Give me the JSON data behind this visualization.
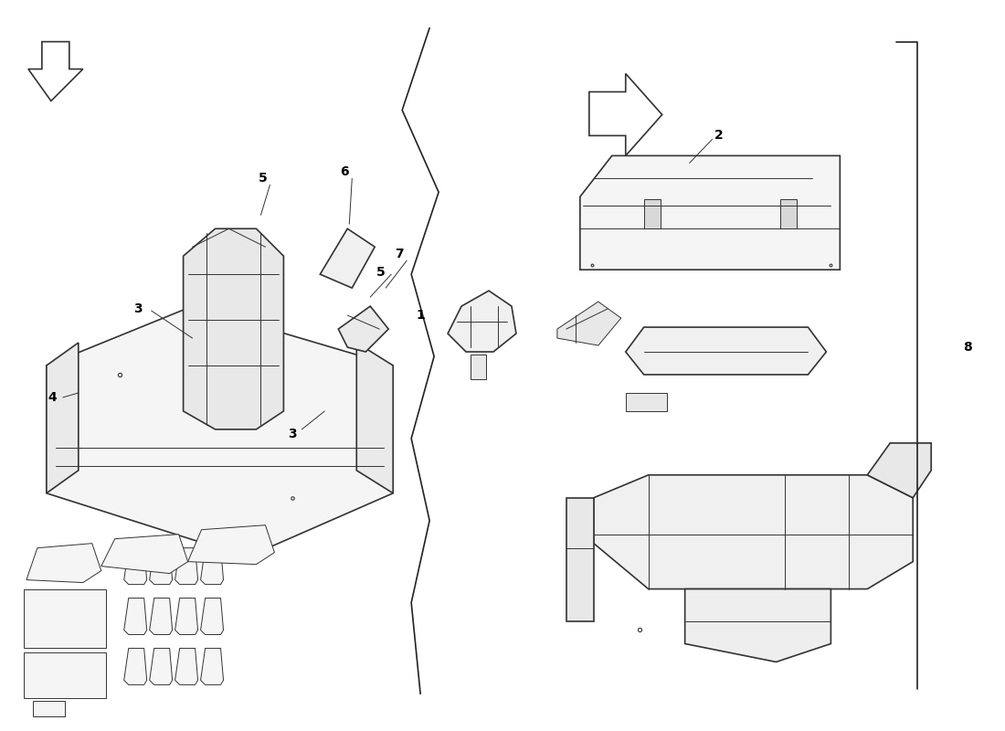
{
  "background_color": "#ffffff",
  "line_color": "#333333",
  "label_color": "#000000",
  "fig_width": 11.0,
  "fig_height": 8.0
}
